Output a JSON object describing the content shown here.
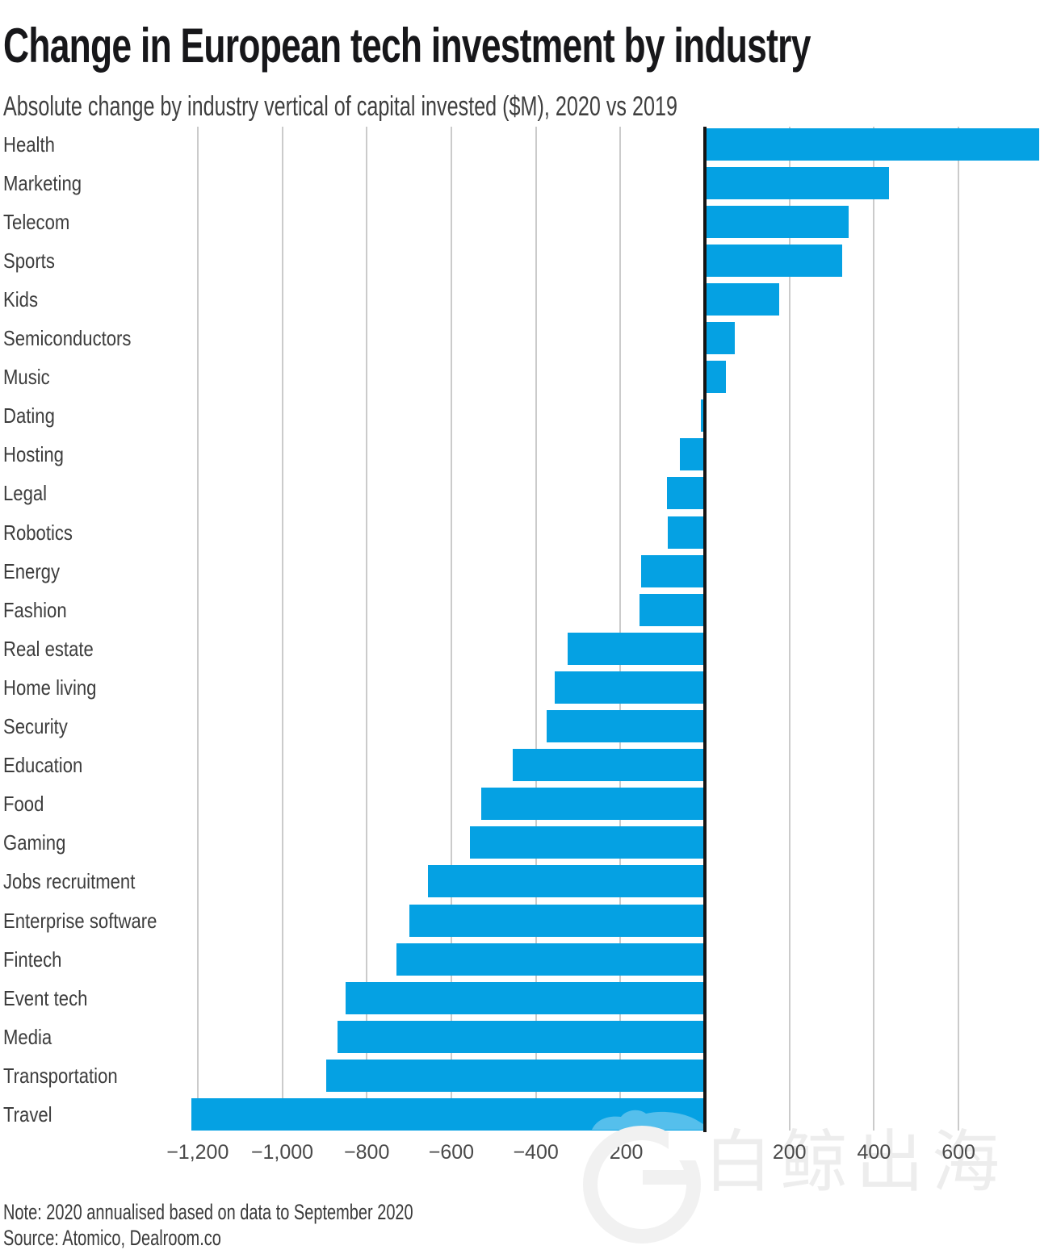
{
  "header": {
    "title": "Change in European tech investment by industry",
    "subtitle": "Absolute change by industry vertical of capital invested ($M), 2020 vs 2019"
  },
  "footer": {
    "note": "Note: 2020 annualised based on data to September 2020",
    "source": "Source: Atomico, Dealroom.co"
  },
  "watermark": {
    "text": "白鲸出海",
    "logo": "whale-logo"
  },
  "chart_data": {
    "type": "bar",
    "orientation": "horizontal",
    "title": "Change in European tech investment by industry",
    "xlabel": "Absolute change of capital invested ($M), 2020 vs 2019",
    "categories": [
      "Health",
      "Marketing",
      "Telecom",
      "Sports",
      "Kids",
      "Semiconductors",
      "Music",
      "Dating",
      "Hosting",
      "Legal",
      "Robotics",
      "Energy",
      "Fashion",
      "Real estate",
      "Home living",
      "Security",
      "Education",
      "Food",
      "Gaming",
      "Jobs recruitment",
      "Enterprise software",
      "Fintech",
      "Event tech",
      "Media",
      "Transportation",
      "Travel"
    ],
    "values": [
      790,
      435,
      340,
      325,
      175,
      70,
      50,
      -10,
      -60,
      -90,
      -87,
      -150,
      -155,
      -325,
      -355,
      -375,
      -455,
      -530,
      -555,
      -655,
      -700,
      -730,
      -850,
      -870,
      -895,
      -1215
    ],
    "xticks": {
      "values": [
        -1200,
        -1000,
        -800,
        -600,
        -400,
        -200,
        0,
        200,
        400,
        600
      ],
      "labels": [
        "−1,200",
        "−1,000",
        "−800",
        "−600",
        "−400",
        "−200",
        "0",
        "200",
        "400",
        "600"
      ]
    },
    "xlim": [
      -1200,
      600
    ],
    "grid": true,
    "bar_color": "#05a1e3",
    "grid_color": "#cbcbcb",
    "axis_color": "#141414"
  }
}
